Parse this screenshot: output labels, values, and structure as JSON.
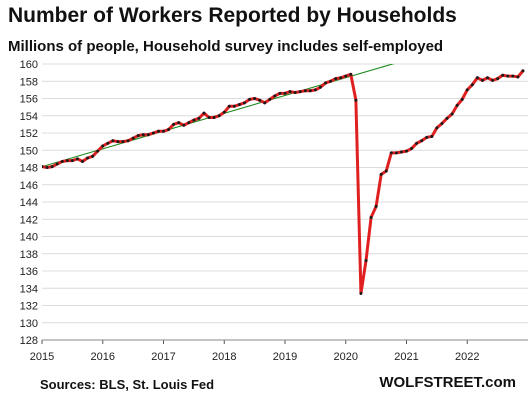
{
  "title": "Number of Workers Reported by Households",
  "subtitle": "Millions of people, Household survey includes self-employed",
  "source": "Sources: BLS, St. Louis Fed",
  "brand": "WOLFSTREET.com",
  "chart_data": {
    "type": "line",
    "ylim": [
      128,
      160
    ],
    "yticks": [
      128,
      130,
      132,
      134,
      136,
      138,
      140,
      142,
      144,
      146,
      148,
      150,
      152,
      154,
      156,
      158,
      160
    ],
    "xlim": [
      "2015-01",
      "2023-01"
    ],
    "xticks": [
      "2015",
      "2016",
      "2017",
      "2018",
      "2019",
      "2020",
      "2021",
      "2022"
    ],
    "grid": true,
    "legend": "none",
    "series": [
      {
        "color": "#e02020",
        "x": [
          "2015-01",
          "2015-02",
          "2015-03",
          "2015-04",
          "2015-05",
          "2015-06",
          "2015-07",
          "2015-08",
          "2015-09",
          "2015-10",
          "2015-11",
          "2015-12",
          "2016-01",
          "2016-02",
          "2016-03",
          "2016-04",
          "2016-05",
          "2016-06",
          "2016-07",
          "2016-08",
          "2016-09",
          "2016-10",
          "2016-11",
          "2016-12",
          "2017-01",
          "2017-02",
          "2017-03",
          "2017-04",
          "2017-05",
          "2017-06",
          "2017-07",
          "2017-08",
          "2017-09",
          "2017-10",
          "2017-11",
          "2017-12",
          "2018-01",
          "2018-02",
          "2018-03",
          "2018-04",
          "2018-05",
          "2018-06",
          "2018-07",
          "2018-08",
          "2018-09",
          "2018-10",
          "2018-11",
          "2018-12",
          "2019-01",
          "2019-02",
          "2019-03",
          "2019-04",
          "2019-05",
          "2019-06",
          "2019-07",
          "2019-08",
          "2019-09",
          "2019-10",
          "2019-11",
          "2019-12",
          "2020-01",
          "2020-02",
          "2020-03",
          "2020-04",
          "2020-05",
          "2020-06",
          "2020-07",
          "2020-08",
          "2020-09",
          "2020-10",
          "2020-11",
          "2020-12",
          "2021-01",
          "2021-02",
          "2021-03",
          "2021-04",
          "2021-05",
          "2021-06",
          "2021-07",
          "2021-08",
          "2021-09",
          "2021-10",
          "2021-11",
          "2021-12",
          "2022-01",
          "2022-02",
          "2022-03",
          "2022-04",
          "2022-05",
          "2022-06",
          "2022-07",
          "2022-08",
          "2022-09",
          "2022-10",
          "2022-11",
          "2022-12"
        ],
        "values": [
          148.1,
          148.0,
          148.1,
          148.4,
          148.7,
          148.8,
          148.8,
          149.0,
          148.7,
          149.1,
          149.3,
          149.9,
          150.5,
          150.8,
          151.1,
          151.0,
          151.0,
          151.1,
          151.4,
          151.7,
          151.8,
          151.8,
          152.0,
          152.2,
          152.2,
          152.4,
          153.0,
          153.2,
          152.9,
          153.2,
          153.5,
          153.7,
          154.3,
          153.8,
          153.8,
          154.0,
          154.4,
          155.1,
          155.1,
          155.3,
          155.5,
          155.9,
          156.0,
          155.8,
          155.5,
          155.9,
          156.3,
          156.6,
          156.6,
          156.8,
          156.7,
          156.8,
          156.9,
          156.9,
          157.0,
          157.3,
          157.8,
          158.0,
          158.3,
          158.4,
          158.6,
          158.8,
          155.8,
          133.4,
          137.2,
          142.2,
          143.5,
          147.2,
          147.6,
          149.7,
          149.7,
          149.8,
          149.9,
          150.2,
          150.8,
          151.1,
          151.5,
          151.6,
          152.6,
          153.1,
          153.7,
          154.2,
          155.2,
          155.9,
          157.0,
          157.6,
          158.4,
          158.1,
          158.4,
          158.1,
          158.3,
          158.7,
          158.6,
          158.6,
          158.5,
          159.2
        ]
      },
      {
        "color": "#1d8a1d",
        "x": [
          "2015-01",
          "2023-01"
        ],
        "values": [
          148.1,
          164.6
        ]
      }
    ]
  }
}
